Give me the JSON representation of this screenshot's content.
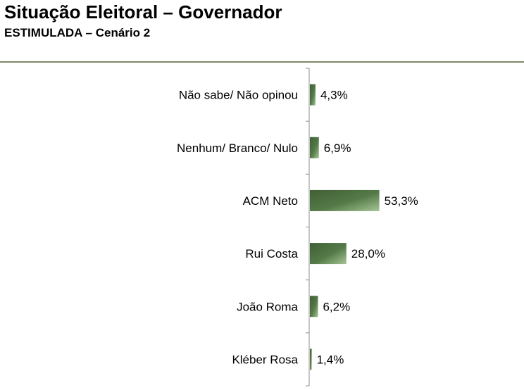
{
  "header": {
    "title": "Situação Eleitoral – Governador",
    "subtitle": "ESTIMULADA – Cenário 2"
  },
  "chart_data": {
    "type": "bar",
    "orientation": "horizontal",
    "title": "",
    "xlabel": "",
    "ylabel": "",
    "categories": [
      "Não sabe/ Não opinou",
      "Nenhum/ Branco/ Nulo",
      "ACM Neto",
      "Rui Costa",
      "João Roma",
      "Kléber Rosa"
    ],
    "values": [
      4.3,
      6.9,
      53.3,
      28.0,
      6.2,
      1.4
    ],
    "value_labels": [
      "4,3%",
      "6,9%",
      "53,3%",
      "28,0%",
      "6,2%",
      "1,4%"
    ],
    "unit": "%",
    "xlim": [
      0,
      100
    ],
    "grid": false,
    "legend": "none",
    "bar_color": "#4a6b3e",
    "bar_highlight": "#a6c596"
  }
}
